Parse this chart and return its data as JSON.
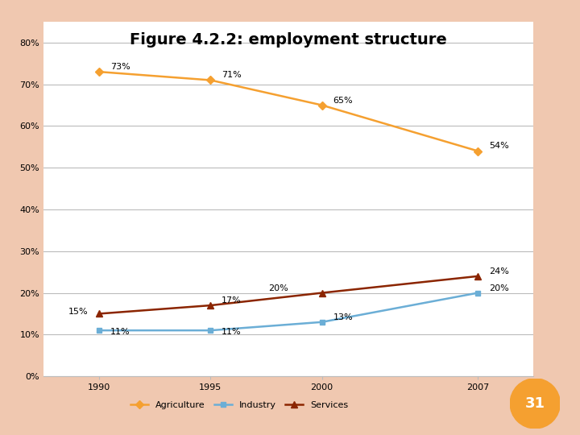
{
  "title": "Figure 4.2.2: employment structure",
  "years": [
    1990,
    1995,
    2000,
    2007
  ],
  "agriculture": [
    0.73,
    0.71,
    0.65,
    0.54
  ],
  "industry": [
    0.11,
    0.11,
    0.13,
    0.2
  ],
  "services": [
    0.15,
    0.17,
    0.2,
    0.24
  ],
  "agri_labels": [
    "73%",
    "71%",
    "65%",
    "54%"
  ],
  "ind_labels": [
    "11%",
    "11%",
    "13%",
    "20%"
  ],
  "serv_labels": [
    "15%",
    "17%",
    "20%",
    "24%"
  ],
  "agri_color": "#F5A030",
  "ind_color": "#6BAED6",
  "serv_color": "#8B2500",
  "yticks": [
    0.0,
    0.1,
    0.2,
    0.3,
    0.4,
    0.5,
    0.6,
    0.7,
    0.8
  ],
  "ytick_labels": [
    "0%",
    "10%",
    "20%",
    "30%",
    "40%",
    "50%",
    "60%",
    "70%",
    "80%"
  ],
  "background_color": "#FFFFFF",
  "outer_bg": "#F0C8B0",
  "title_fontsize": 14,
  "label_fontsize": 8,
  "axis_fontsize": 8,
  "legend_fontsize": 8,
  "badge_number": "31",
  "badge_color": "#F5A030",
  "xlim_left": 1987.5,
  "xlim_right": 2009.5
}
